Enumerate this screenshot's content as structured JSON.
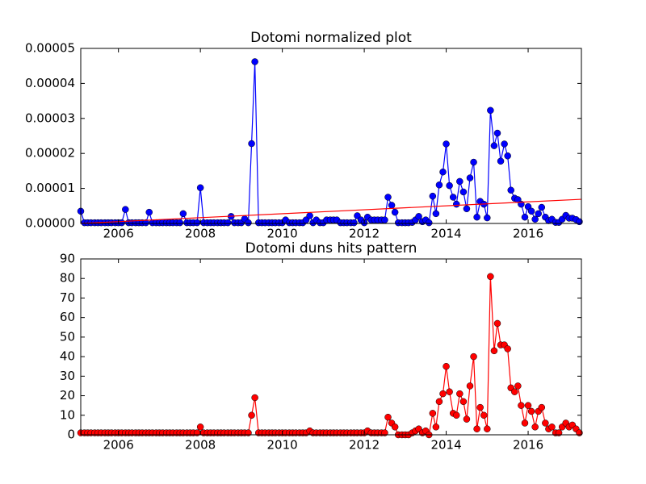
{
  "chart_data": [
    {
      "type": "line",
      "title": "Dotomi normalized plot",
      "x": [
        2005.08,
        2005.17,
        2005.25,
        2005.33,
        2005.42,
        2005.5,
        2005.58,
        2005.67,
        2005.75,
        2005.83,
        2005.92,
        2006.0,
        2006.08,
        2006.17,
        2006.25,
        2006.33,
        2006.42,
        2006.5,
        2006.58,
        2006.67,
        2006.75,
        2006.83,
        2006.92,
        2007.0,
        2007.08,
        2007.17,
        2007.25,
        2007.33,
        2007.42,
        2007.5,
        2007.58,
        2007.67,
        2007.75,
        2007.83,
        2007.92,
        2008.0,
        2008.08,
        2008.17,
        2008.25,
        2008.33,
        2008.42,
        2008.5,
        2008.58,
        2008.67,
        2008.75,
        2008.83,
        2008.92,
        2009.0,
        2009.08,
        2009.17,
        2009.25,
        2009.33,
        2009.42,
        2009.5,
        2009.58,
        2009.67,
        2009.75,
        2009.83,
        2009.92,
        2010.0,
        2010.08,
        2010.17,
        2010.25,
        2010.33,
        2010.42,
        2010.5,
        2010.58,
        2010.67,
        2010.75,
        2010.83,
        2010.92,
        2011.0,
        2011.08,
        2011.17,
        2011.25,
        2011.33,
        2011.42,
        2011.5,
        2011.58,
        2011.67,
        2011.75,
        2011.83,
        2011.92,
        2012.0,
        2012.08,
        2012.17,
        2012.25,
        2012.33,
        2012.42,
        2012.5,
        2012.58,
        2012.67,
        2012.75,
        2012.83,
        2012.92,
        2013.0,
        2013.08,
        2013.17,
        2013.25,
        2013.33,
        2013.42,
        2013.5,
        2013.58,
        2013.67,
        2013.75,
        2013.83,
        2013.92,
        2014.0,
        2014.08,
        2014.17,
        2014.25,
        2014.33,
        2014.42,
        2014.5,
        2014.58,
        2014.67,
        2014.75,
        2014.83,
        2014.92,
        2015.0,
        2015.08,
        2015.17,
        2015.25,
        2015.33,
        2015.42,
        2015.5,
        2015.58,
        2015.67,
        2015.75,
        2015.83,
        2015.92,
        2016.0,
        2016.08,
        2016.17,
        2016.25,
        2016.33,
        2016.42,
        2016.5,
        2016.58,
        2016.67,
        2016.75,
        2016.83,
        2016.92,
        2017.0,
        2017.08,
        2017.17,
        2017.25
      ],
      "series": [
        {
          "color": "#0000ff",
          "marker": "o",
          "values": [
            3.5e-06,
            2e-07,
            2e-07,
            2e-07,
            2e-07,
            2e-07,
            2e-07,
            2e-07,
            2e-07,
            2e-07,
            2e-07,
            2e-07,
            2e-07,
            4e-06,
            2e-07,
            2e-07,
            2e-07,
            2e-07,
            2e-07,
            2e-07,
            3.2e-06,
            2e-07,
            2e-07,
            2e-07,
            2e-07,
            2e-07,
            2e-07,
            2e-07,
            2e-07,
            2e-07,
            2.8e-06,
            2e-07,
            2e-07,
            2e-07,
            2e-07,
            1.02e-05,
            2e-07,
            2e-07,
            2e-07,
            2e-07,
            2e-07,
            2e-07,
            2e-07,
            2e-07,
            2e-06,
            2e-07,
            2e-07,
            2e-07,
            1.3e-06,
            2e-07,
            2.28e-05,
            4.62e-05,
            2e-07,
            2e-07,
            2e-07,
            2e-07,
            2e-07,
            2e-07,
            2e-07,
            2e-07,
            1e-06,
            2e-07,
            2e-07,
            2e-07,
            2e-07,
            2e-07,
            1e-06,
            2.2e-06,
            2e-07,
            1e-06,
            2e-07,
            2e-07,
            1e-06,
            1e-06,
            1e-06,
            1e-06,
            2e-07,
            2e-07,
            2e-07,
            2e-07,
            2e-07,
            2.2e-06,
            1e-06,
            2e-07,
            1.8e-06,
            1e-06,
            1e-06,
            1e-06,
            1e-06,
            1e-06,
            7.5e-06,
            5.2e-06,
            3.2e-06,
            2e-07,
            2e-07,
            2e-07,
            2e-07,
            3e-07,
            1e-06,
            2e-06,
            5e-07,
            1e-06,
            2e-07,
            7.8e-06,
            2.8e-06,
            1.1e-05,
            1.47e-05,
            2.27e-05,
            1.08e-05,
            7.5e-06,
            5.5e-06,
            1.2e-05,
            9e-06,
            4.2e-06,
            1.3e-05,
            1.75e-05,
            1.8e-06,
            6.3e-06,
            5.5e-06,
            1.6e-06,
            3.23e-05,
            2.22e-05,
            2.58e-05,
            1.78e-05,
            2.27e-05,
            1.93e-05,
            9.5e-06,
            7.2e-06,
            6.8e-06,
            5.5e-06,
            1.8e-06,
            4.8e-06,
            3.5e-06,
            1.2e-06,
            2.8e-06,
            4.6e-06,
            1.8e-06,
            8e-07,
            1.2e-06,
            3e-07,
            3e-07,
            1.2e-06,
            2.3e-06,
            1.5e-06,
            1.5e-06,
            1.1e-06,
            5e-07
          ]
        },
        {
          "color": "#ff0000",
          "x": [
            2005.08,
            2017.3
          ],
          "values": [
            0,
            6.9e-06
          ]
        }
      ],
      "xlim": [
        2005.08,
        2017.3
      ],
      "xticks": [
        2006,
        2008,
        2010,
        2012,
        2014,
        2016
      ],
      "ylim": [
        0,
        5e-05
      ],
      "yticks": [
        {
          "value": 0,
          "label": "0.00000"
        },
        {
          "value": 1e-05,
          "label": "0.00001"
        },
        {
          "value": 2e-05,
          "label": "0.00002"
        },
        {
          "value": 3e-05,
          "label": "0.00003"
        },
        {
          "value": 4e-05,
          "label": "0.00004"
        },
        {
          "value": 5e-05,
          "label": "0.00005"
        }
      ]
    },
    {
      "type": "line",
      "title": "Dotomi duns hits pattern",
      "x": [
        2005.08,
        2005.17,
        2005.25,
        2005.33,
        2005.42,
        2005.5,
        2005.58,
        2005.67,
        2005.75,
        2005.83,
        2005.92,
        2006.0,
        2006.08,
        2006.17,
        2006.25,
        2006.33,
        2006.42,
        2006.5,
        2006.58,
        2006.67,
        2006.75,
        2006.83,
        2006.92,
        2007.0,
        2007.08,
        2007.17,
        2007.25,
        2007.33,
        2007.42,
        2007.5,
        2007.58,
        2007.67,
        2007.75,
        2007.83,
        2007.92,
        2008.0,
        2008.08,
        2008.17,
        2008.25,
        2008.33,
        2008.42,
        2008.5,
        2008.58,
        2008.67,
        2008.75,
        2008.83,
        2008.92,
        2009.0,
        2009.08,
        2009.17,
        2009.25,
        2009.33,
        2009.42,
        2009.5,
        2009.58,
        2009.67,
        2009.75,
        2009.83,
        2009.92,
        2010.0,
        2010.08,
        2010.17,
        2010.25,
        2010.33,
        2010.42,
        2010.5,
        2010.58,
        2010.67,
        2010.75,
        2010.83,
        2010.92,
        2011.0,
        2011.08,
        2011.17,
        2011.25,
        2011.33,
        2011.42,
        2011.5,
        2011.58,
        2011.67,
        2011.75,
        2011.83,
        2011.92,
        2012.0,
        2012.08,
        2012.17,
        2012.25,
        2012.33,
        2012.42,
        2012.5,
        2012.58,
        2012.67,
        2012.75,
        2012.83,
        2012.92,
        2013.0,
        2013.08,
        2013.17,
        2013.25,
        2013.33,
        2013.42,
        2013.5,
        2013.58,
        2013.67,
        2013.75,
        2013.83,
        2013.92,
        2014.0,
        2014.08,
        2014.17,
        2014.25,
        2014.33,
        2014.42,
        2014.5,
        2014.58,
        2014.67,
        2014.75,
        2014.83,
        2014.92,
        2015.0,
        2015.08,
        2015.17,
        2015.25,
        2015.33,
        2015.42,
        2015.5,
        2015.58,
        2015.67,
        2015.75,
        2015.83,
        2015.92,
        2016.0,
        2016.08,
        2016.17,
        2016.25,
        2016.33,
        2016.42,
        2016.5,
        2016.58,
        2016.67,
        2016.75,
        2016.83,
        2016.92,
        2017.0,
        2017.08,
        2017.17,
        2017.25
      ],
      "series": [
        {
          "color": "#ff0000",
          "marker": "o",
          "values": [
            1,
            1,
            1,
            1,
            1,
            1,
            1,
            1,
            1,
            1,
            1,
            1,
            1,
            1,
            1,
            1,
            1,
            1,
            1,
            1,
            1,
            1,
            1,
            1,
            1,
            1,
            1,
            1,
            1,
            1,
            1,
            1,
            1,
            1,
            1,
            4,
            1,
            1,
            1,
            1,
            1,
            1,
            1,
            1,
            1,
            1,
            1,
            1,
            1,
            1,
            10,
            19,
            1,
            1,
            1,
            1,
            1,
            1,
            1,
            1,
            1,
            1,
            1,
            1,
            1,
            1,
            1,
            2,
            1,
            1,
            1,
            1,
            1,
            1,
            1,
            1,
            1,
            1,
            1,
            1,
            1,
            1,
            1,
            1,
            2,
            1,
            1,
            1,
            1,
            1,
            9,
            6,
            4,
            0,
            0,
            0,
            0,
            1,
            2,
            3,
            1,
            2,
            0,
            11,
            4,
            17,
            21,
            35,
            22,
            11,
            10,
            21,
            17,
            8,
            25,
            40,
            3,
            14,
            10,
            3,
            81,
            43,
            57,
            46,
            46,
            44,
            24,
            22,
            25,
            15,
            6,
            15,
            12,
            4,
            12,
            14,
            6,
            3,
            4,
            1,
            1,
            4,
            6,
            4,
            5,
            3,
            1
          ]
        }
      ],
      "xlim": [
        2005.08,
        2017.3
      ],
      "xticks": [
        2006,
        2008,
        2010,
        2012,
        2014,
        2016
      ],
      "ylim": [
        0,
        90
      ],
      "yticks": [
        0,
        10,
        20,
        30,
        40,
        50,
        60,
        70,
        80,
        90
      ]
    }
  ]
}
